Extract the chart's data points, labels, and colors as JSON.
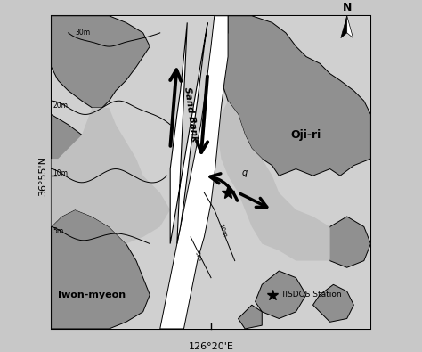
{
  "bg_color": "#c8c8c8",
  "frame_color": "#ffffff",
  "land_dark": "#909090",
  "land_medium": "#b8b8b8",
  "shallow_light": "#d4d4d4",
  "deep_white": "#ffffff",
  "xlabel": "126°20'E",
  "ylabel": "36°55'N",
  "labels": {
    "sand_bank": "Sand Bank",
    "oji_ri": "Oji-ri",
    "iwon_myeon": "Iwon-myeon",
    "tisdos": "TISDOS Station",
    "north": "N"
  },
  "figsize": [
    4.74,
    3.95
  ],
  "dpi": 100
}
